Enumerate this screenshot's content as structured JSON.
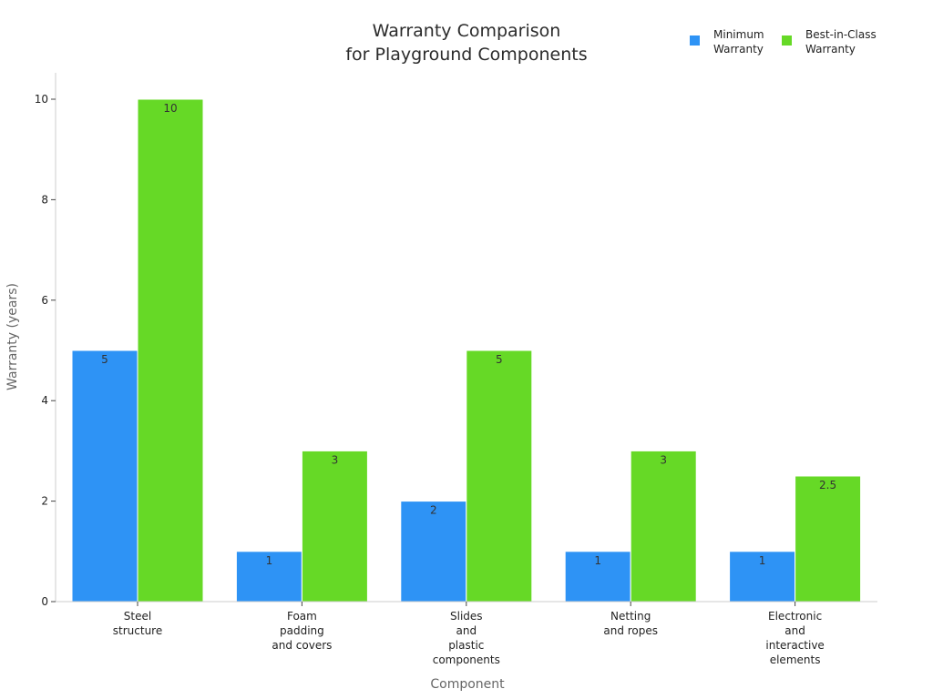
{
  "chart_data": {
    "type": "bar",
    "title": [
      "Warranty Comparison",
      "for Playground Components"
    ],
    "xlabel": "Component",
    "ylabel": "Warranty (years)",
    "ylim": [
      0,
      10.5
    ],
    "yticks": [
      0,
      2,
      4,
      6,
      8,
      10
    ],
    "grid": false,
    "legend_position": "top-right",
    "categories": [
      [
        "Steel",
        "structure"
      ],
      [
        "Foam",
        "padding",
        "and covers"
      ],
      [
        "Slides",
        "and",
        "plastic",
        "components"
      ],
      [
        "Netting",
        "and ropes"
      ],
      [
        "Electronic",
        "and",
        "interactive",
        "elements"
      ]
    ],
    "series": [
      {
        "name": [
          "Minimum",
          "Warranty"
        ],
        "color": "#2e93f5",
        "values": [
          5,
          1,
          2,
          1,
          1
        ],
        "labels": [
          "5",
          "1",
          "2",
          "1",
          "1"
        ]
      },
      {
        "name": [
          "Best-in-Class",
          "Warranty"
        ],
        "color": "#66d926",
        "values": [
          10,
          3,
          5,
          3,
          2.5
        ],
        "labels": [
          "10",
          "3",
          "5",
          "3",
          "2.5"
        ]
      }
    ]
  }
}
